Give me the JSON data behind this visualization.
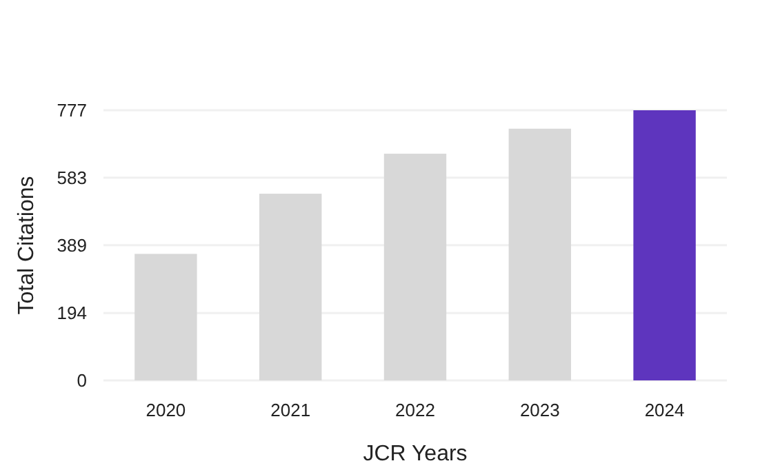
{
  "chart_data": {
    "type": "bar",
    "xlabel": "JCR Years",
    "ylabel": "Total Citations",
    "categories": [
      "2020",
      "2021",
      "2022",
      "2023",
      "2024"
    ],
    "values": [
      364,
      537,
      652,
      724,
      777
    ],
    "colors": [
      "#d8d8d8",
      "#d8d8d8",
      "#d8d8d8",
      "#d8d8d8",
      "#5e35be"
    ],
    "ylim": [
      0,
      777
    ],
    "yticks": [
      0,
      194,
      389,
      583,
      777
    ],
    "grid": "y"
  }
}
